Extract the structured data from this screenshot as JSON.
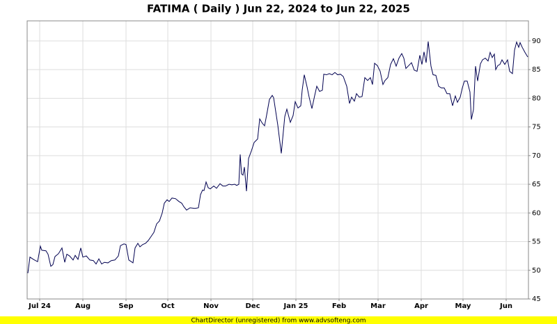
{
  "chart_data": {
    "type": "line",
    "title": "FATIMA ( Daily ) Jun 22, 2024 to Jun 22, 2025",
    "footer": "ChartDirector (unregistered) from www.advsofteng.com",
    "color": "#000050",
    "grid": true,
    "xlim": [
      0,
      360
    ],
    "ylim": [
      45,
      93.5
    ],
    "xticks": [
      {
        "value": 9,
        "label": "Jul 24"
      },
      {
        "value": 40,
        "label": "Aug"
      },
      {
        "value": 71,
        "label": "Sep"
      },
      {
        "value": 101,
        "label": "Oct"
      },
      {
        "value": 132,
        "label": "Nov"
      },
      {
        "value": 162,
        "label": "Dec"
      },
      {
        "value": 193,
        "label": "Jan 25"
      },
      {
        "value": 224,
        "label": "Feb"
      },
      {
        "value": 252,
        "label": "Mar"
      },
      {
        "value": 283,
        "label": "Apr"
      },
      {
        "value": 313,
        "label": "May"
      },
      {
        "value": 344,
        "label": "Jun"
      }
    ],
    "yticks": [
      45,
      50,
      55,
      60,
      65,
      70,
      75,
      80,
      85,
      90
    ],
    "x": [
      0.5,
      2,
      4.5,
      7.5,
      9.5,
      10.5,
      13.5,
      15,
      17,
      18.5,
      20,
      22.5,
      25,
      27,
      28.5,
      30.5,
      33,
      34.5,
      36.5,
      38.5,
      40,
      42.5,
      45,
      47.5,
      49.5,
      51.5,
      53.5,
      55.5,
      58,
      60.5,
      63,
      65.5,
      67,
      69.5,
      71,
      73,
      76,
      77.5,
      79.5,
      81,
      83,
      85,
      87,
      89,
      91,
      93,
      95,
      97,
      98.5,
      100.5,
      102,
      104,
      106.5,
      109,
      111,
      112.5,
      114.5,
      117,
      120.5,
      123,
      124.5,
      126,
      127,
      128.5,
      130,
      131.5,
      134,
      136,
      138.5,
      140.5,
      142.5,
      145,
      147,
      149,
      150.5,
      152,
      153,
      154,
      155,
      156,
      157.5,
      159,
      161,
      163,
      165.5,
      167,
      169,
      170.5,
      172,
      174,
      176,
      177,
      180,
      182.5,
      185,
      186.5,
      189,
      191,
      192.5,
      194.5,
      196.5,
      197.5,
      199,
      201,
      202.5,
      204.5,
      206.5,
      208,
      210,
      212,
      213,
      215,
      217,
      219,
      221,
      223,
      225,
      227,
      229.5,
      231.5,
      233,
      235,
      236.5,
      238.5,
      240.5,
      242.5,
      244.5,
      246.5,
      248,
      249.5,
      251.5,
      253.5,
      255.5,
      257,
      259,
      261,
      263,
      265,
      267,
      269,
      270.5,
      272,
      274,
      276,
      278,
      280,
      282,
      283.5,
      285,
      286.5,
      288,
      290,
      291.5,
      293.5,
      295.5,
      297.5,
      299.5,
      301.5,
      303.5,
      305.5,
      307.5,
      309,
      311,
      312.5,
      314,
      316,
      318,
      319,
      320.5,
      322,
      323.5,
      325.5,
      327,
      329,
      331,
      332.5,
      334,
      335.5,
      336.5,
      338,
      339.5,
      341,
      343,
      345,
      346.5,
      348.5,
      350,
      351.5,
      353,
      354,
      355.5,
      357.5,
      359.5
    ],
    "values": [
      49.5,
      52.3,
      51.9,
      51.5,
      54.2,
      53.5,
      53.4,
      52.8,
      50.7,
      51,
      52.4,
      52.9,
      53.9,
      51.4,
      52.8,
      52.5,
      51.8,
      52.6,
      51.9,
      53.9,
      52.3,
      52.5,
      51.8,
      51.7,
      51.1,
      52,
      51.1,
      51.4,
      51.3,
      51.7,
      51.8,
      52.5,
      54.3,
      54.6,
      54.5,
      51.8,
      51.3,
      53.9,
      54.7,
      54.1,
      54.5,
      54.7,
      55.2,
      55.9,
      56.6,
      58.1,
      58.6,
      60,
      61.7,
      62.3,
      62,
      62.6,
      62.5,
      62,
      61.7,
      61.1,
      60.5,
      60.9,
      60.8,
      60.9,
      63.2,
      64,
      63.9,
      65.4,
      64.4,
      64.2,
      64.7,
      64.3,
      65.1,
      64.7,
      64.7,
      65,
      64.9,
      65,
      64.8,
      65,
      70.2,
      66.8,
      66.6,
      68,
      63.8,
      69.5,
      70.8,
      72.3,
      72.9,
      76.4,
      75.6,
      75.2,
      77.1,
      79.8,
      80.5,
      80.1,
      75.3,
      70.4,
      76.8,
      78.1,
      75.8,
      77,
      79.4,
      78.3,
      78.7,
      81.4,
      84.1,
      82,
      80.2,
      78.2,
      80.5,
      82.1,
      81.2,
      81.4,
      84.2,
      84.1,
      84.3,
      84.1,
      84.5,
      84.1,
      84.2,
      83.8,
      82.1,
      79.1,
      80.2,
      79.5,
      80.8,
      80.2,
      80.3,
      83.6,
      83.1,
      83.6,
      82.4,
      86.1,
      85.7,
      84.7,
      82.4,
      83.1,
      83.6,
      85.9,
      86.9,
      85.6,
      87,
      87.8,
      87,
      85.2,
      85.7,
      86.2,
      84.9,
      84.7,
      87.5,
      85.9,
      88.1,
      86.2,
      89.9,
      85.6,
      84.1,
      84,
      82.1,
      81.8,
      81.8,
      80.8,
      80.8,
      78.7,
      80.4,
      79.3,
      80.2,
      81.8,
      83,
      83,
      81.1,
      76.3,
      78,
      85.6,
      83,
      86,
      86.7,
      87,
      86.5,
      88,
      87.1,
      87.7,
      85,
      85.7,
      85.9,
      86.7,
      85.9,
      86.7,
      84.7,
      84.3,
      88.4,
      89.8,
      88.9,
      89.7,
      88.9,
      88,
      87.2
    ]
  }
}
